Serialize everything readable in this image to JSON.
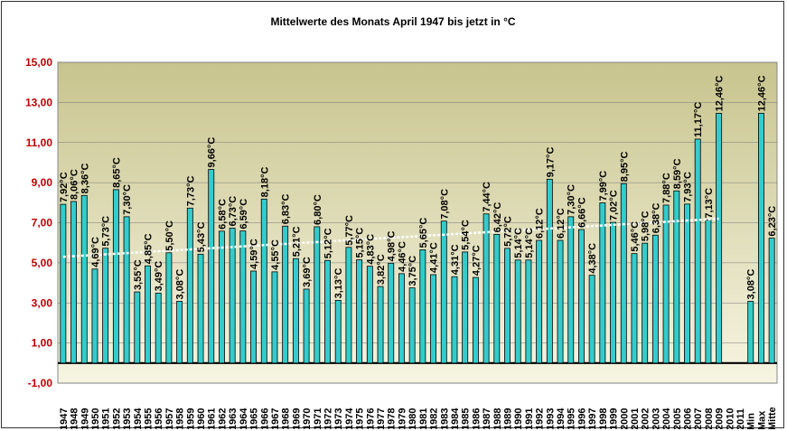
{
  "chart_data": {
    "type": "bar",
    "title": "Mittelwerte des Monats April 1947 bis jetzt in °C",
    "xlabel": "",
    "ylabel": "",
    "ylim": [
      -1,
      15
    ],
    "yticks": [
      "-1,00",
      "1,00",
      "3,00",
      "5,00",
      "7,00",
      "9,00",
      "11,00",
      "13,00",
      "15,00"
    ],
    "grid": true,
    "legend": "none",
    "colors": {
      "bar": "#33cccc",
      "plot_bg_top": "#c8c48e",
      "plot_bg_bottom": "#f6f5e2",
      "trend": "#ffffff",
      "ytick": "#c00000"
    },
    "categories": [
      "1947",
      "1948",
      "1949",
      "1950",
      "1951",
      "1952",
      "1953",
      "1954",
      "1955",
      "1956",
      "1957",
      "1958",
      "1959",
      "1960",
      "1961",
      "1962",
      "1963",
      "1964",
      "1965",
      "1966",
      "1967",
      "1968",
      "1969",
      "1970",
      "1971",
      "1972",
      "1973",
      "1974",
      "1975",
      "1976",
      "1977",
      "1978",
      "1979",
      "1980",
      "1981",
      "1982",
      "1983",
      "1984",
      "1985",
      "1986",
      "1987",
      "1988",
      "1989",
      "1990",
      "1991",
      "1992",
      "1993",
      "1994",
      "1995",
      "1996",
      "1997",
      "1998",
      "1999",
      "2000",
      "2001",
      "2002",
      "2003",
      "2004",
      "2005",
      "2006",
      "2007",
      "2008",
      "2009",
      "2010",
      "2011",
      "Min",
      "Max",
      "Mitte"
    ],
    "values": [
      7.92,
      8.06,
      8.36,
      4.69,
      5.73,
      8.65,
      7.3,
      3.55,
      4.85,
      3.49,
      5.5,
      3.08,
      7.73,
      5.43,
      9.66,
      6.58,
      6.73,
      6.59,
      4.59,
      8.18,
      4.55,
      6.83,
      5.21,
      3.69,
      6.8,
      5.12,
      3.13,
      5.77,
      5.15,
      4.83,
      3.82,
      4.98,
      4.46,
      3.75,
      5.65,
      4.41,
      7.08,
      4.31,
      5.54,
      4.27,
      7.44,
      6.42,
      5.72,
      5.14,
      5.14,
      6.12,
      9.17,
      6.12,
      7.3,
      6.66,
      4.38,
      7.99,
      7.02,
      8.95,
      5.46,
      5.98,
      6.38,
      7.88,
      8.59,
      7.93,
      11.17,
      7.13,
      12.46,
      null,
      null,
      3.08,
      12.46,
      6.23
    ],
    "labels": [
      "7,92°C",
      "8,06°C",
      "8,36°C",
      "4,69°C",
      "5,73°C",
      "8,65°C",
      "7,30°C",
      "3,55°C",
      "4,85°C",
      "3,49°C",
      "5,50°C",
      "3,08°C",
      "7,73°C",
      "5,43°C",
      "9,66°C",
      "6,58°C",
      "6,73°C",
      "6,59°C",
      "4,59°C",
      "8,18°C",
      "4,55°C",
      "6,83°C",
      "5,21°C",
      "3,69°C",
      "6,80°C",
      "5,12°C",
      "3,13°C",
      "5,77°C",
      "5,15°C",
      "4,83°C",
      "3,82°C",
      "4,98°C",
      "4,46°C",
      "3,75°C",
      "5,65°C",
      "4,41°C",
      "7,08°C",
      "4,31°C",
      "5,54°C",
      "4,27°C",
      "7,44°C",
      "6,42°C",
      "5,72°C",
      "5,14°C",
      "5,14°C",
      "6,12°C",
      "9,17°C",
      "6,12°C",
      "7,30°C",
      "6,66°C",
      "4,38°C",
      "7,99°C",
      "7,02°C",
      "8,95°C",
      "5,46°C",
      "5,98°C",
      "6,38°C",
      "7,88°C",
      "8,59°C",
      "7,93°C",
      "11,17°C",
      "7,13°C",
      "12,46°C",
      "",
      "",
      "3,08°C",
      "12,46°C",
      "6,23°C"
    ],
    "trendline": {
      "type": "linear",
      "from": 5.3,
      "to": 7.2
    }
  }
}
